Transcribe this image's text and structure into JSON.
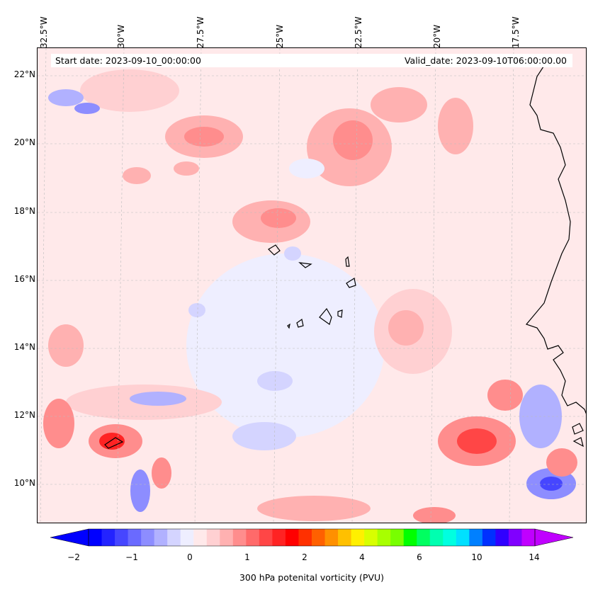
{
  "header": {
    "start_date": "Start date: 2023-09-10_00:00:00",
    "valid_date": "Valid_date: 2023-09-10T06:00:00.00"
  },
  "longitude_labels": [
    "32.5°W",
    "30°W",
    "27.5°W",
    "25°W",
    "22.5°W",
    "20°W",
    "17.5°W"
  ],
  "latitude_labels": [
    "22°N",
    "20°N",
    "18°N",
    "16°N",
    "14°N",
    "12°N",
    "10°N"
  ],
  "map": {
    "variable": "300 hPa potential vorticity",
    "extent_lon": [
      -33,
      -15.8
    ],
    "extent_lat": [
      8.8,
      22.8
    ],
    "grid_lines": true,
    "background_level_color": "#ffe9ea",
    "coastline_color": "#000000",
    "features": [
      {
        "name": "Cabo Verde islands",
        "type": "coastline"
      },
      {
        "name": "West African coast",
        "type": "coastline"
      }
    ]
  },
  "colorbar": {
    "label": "300 hPa potenital vorticity (PVU)",
    "tick_labels": [
      "−2",
      "−1",
      "0",
      "1",
      "2",
      "4",
      "6",
      "10",
      "14"
    ],
    "extend": "both",
    "colors": [
      "#0000ff",
      "#2323ff",
      "#4646ff",
      "#6a6aff",
      "#8d8dff",
      "#b1b1ff",
      "#d4d4ff",
      "#eeeeff",
      "#ffe9ea",
      "#ffd0d2",
      "#ffb1b1",
      "#ff8d8d",
      "#ff6a6a",
      "#ff4646",
      "#ff2323",
      "#ff0000",
      "#ff3000",
      "#ff6000",
      "#ff9000",
      "#ffc000",
      "#fff000",
      "#d8ff00",
      "#a8ff00",
      "#78ff00",
      "#00ff00",
      "#00ff60",
      "#00ffb0",
      "#00ffe0",
      "#00e0ff",
      "#0080ff",
      "#0030ff",
      "#3000ff",
      "#8000ff",
      "#c000ff"
    ],
    "min_arrow_color": "#0000ff",
    "max_arrow_color": "#c000ff"
  }
}
